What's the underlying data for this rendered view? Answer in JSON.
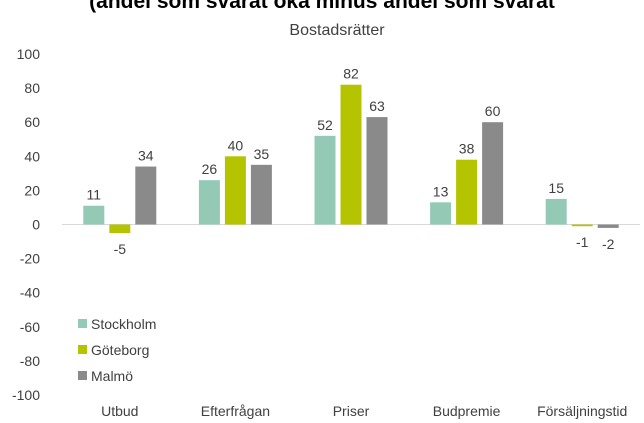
{
  "heading": "(andel som svarat öka minus andel som svarat",
  "chart_data": {
    "type": "bar",
    "title": "Bostadsrätter",
    "categories": [
      "Utbud",
      "Efterfrågan",
      "Priser",
      "Budpremie",
      "Försäljningstid"
    ],
    "series": [
      {
        "name": "Stockholm",
        "values": [
          11,
          26,
          52,
          13,
          15
        ],
        "color": "#93c9b5"
      },
      {
        "name": "Göteborg",
        "values": [
          -5,
          40,
          82,
          38,
          -1
        ],
        "color": "#b4c400"
      },
      {
        "name": "Malmö",
        "values": [
          34,
          35,
          63,
          60,
          -2
        ],
        "color": "#8a8a8a"
      }
    ],
    "ylim": [
      -100,
      100
    ],
    "yticks": [
      100,
      80,
      60,
      40,
      20,
      0,
      -20,
      -40,
      -60,
      -80,
      -100
    ],
    "xlabel": "",
    "ylabel": "",
    "legend_position": "bottom-left",
    "grid": false
  }
}
